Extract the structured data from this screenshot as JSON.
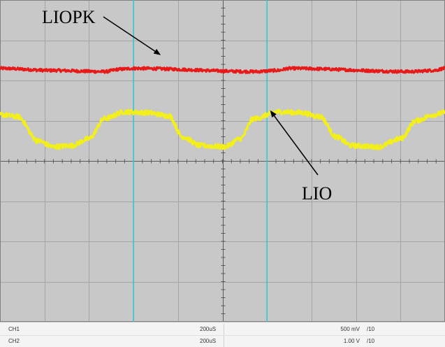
{
  "chart_data": {
    "type": "line",
    "title": "",
    "xlabel": "",
    "ylabel": "",
    "grid": true,
    "grid_divisions": {
      "horizontal": 10,
      "vertical": 8
    },
    "x_unit": "us",
    "xlim": [
      0,
      2000
    ],
    "ylim_divisions": [
      -4,
      4
    ],
    "series": [
      {
        "name": "LIOPK",
        "color": "#e81919",
        "points_div": [
          [
            0,
            2.3
          ],
          [
            230,
            2.25
          ],
          [
            470,
            2.22
          ],
          [
            540,
            2.28
          ],
          [
            600,
            2.3
          ],
          [
            1150,
            2.22
          ],
          [
            1250,
            2.25
          ],
          [
            1300,
            2.3
          ],
          [
            1850,
            2.22
          ],
          [
            1950,
            2.25
          ],
          [
            2000,
            2.3
          ]
        ]
      },
      {
        "name": "LIO",
        "color": "#f2ef1a",
        "points_div": [
          [
            0,
            1.15
          ],
          [
            80,
            1.1
          ],
          [
            170,
            0.5
          ],
          [
            240,
            0.35
          ],
          [
            320,
            0.38
          ],
          [
            400,
            0.55
          ],
          [
            470,
            1.05
          ],
          [
            560,
            1.22
          ],
          [
            660,
            1.2
          ],
          [
            760,
            1.12
          ],
          [
            820,
            0.6
          ],
          [
            900,
            0.38
          ],
          [
            1010,
            0.35
          ],
          [
            1080,
            0.55
          ],
          [
            1140,
            1.05
          ],
          [
            1250,
            1.22
          ],
          [
            1350,
            1.2
          ],
          [
            1440,
            1.1
          ],
          [
            1510,
            0.6
          ],
          [
            1580,
            0.38
          ],
          [
            1700,
            0.35
          ],
          [
            1800,
            0.55
          ],
          [
            1870,
            1.0
          ],
          [
            1950,
            1.15
          ],
          [
            2000,
            1.2
          ]
        ]
      }
    ],
    "cursors_us": [
      600,
      1200
    ],
    "cursor_color": "#35c6d2",
    "annotations": [
      {
        "label": "LIOPK",
        "target_us": 730,
        "target_div": 2.65
      },
      {
        "label": "LIO",
        "target_us": 1180,
        "target_div": 1.3
      }
    ],
    "colors": {
      "background": "#c8c8c8",
      "grid": "#a4a4a4",
      "major": "#5a5a5a"
    }
  },
  "status": {
    "rows": [
      {
        "name": "CH1",
        "time": "200uS",
        "volts": "500 mV",
        "ratio": "/10"
      },
      {
        "name": "CH2",
        "time": "200uS",
        "volts": "1.00 V",
        "ratio": "/10"
      }
    ]
  }
}
